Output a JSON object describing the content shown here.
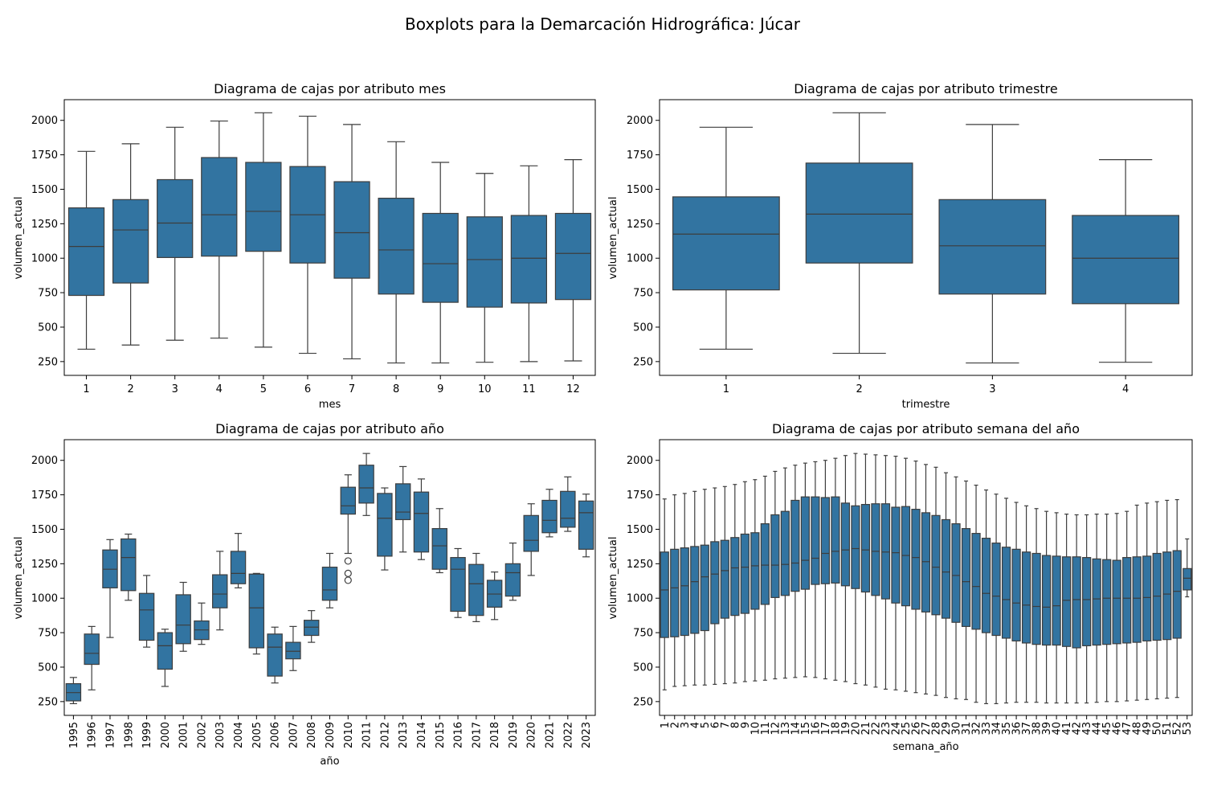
{
  "figure": {
    "suptitle": "Boxplots para la Demarcación Hidrográfica: Júcar",
    "box_color": "#3274a1",
    "line_color": "#3d3d3d"
  },
  "chart_data": [
    {
      "type": "boxplot",
      "title": "Diagrama de cajas por atributo mes",
      "xlabel": "mes",
      "ylabel": "volumen_actual",
      "ylim": [
        150,
        2150
      ],
      "yticks": [
        250,
        500,
        750,
        1000,
        1250,
        1500,
        1750,
        2000
      ],
      "grid": false,
      "categories": [
        "1",
        "2",
        "3",
        "4",
        "5",
        "6",
        "7",
        "8",
        "9",
        "10",
        "11",
        "12"
      ],
      "boxes": [
        {
          "min": 340,
          "q1": 730,
          "median": 1085,
          "q3": 1365,
          "max": 1775
        },
        {
          "min": 370,
          "q1": 820,
          "median": 1205,
          "q3": 1425,
          "max": 1830
        },
        {
          "min": 405,
          "q1": 1005,
          "median": 1255,
          "q3": 1570,
          "max": 1950
        },
        {
          "min": 420,
          "q1": 1015,
          "median": 1315,
          "q3": 1730,
          "max": 1995
        },
        {
          "min": 355,
          "q1": 1050,
          "median": 1340,
          "q3": 1695,
          "max": 2055
        },
        {
          "min": 310,
          "q1": 965,
          "median": 1315,
          "q3": 1665,
          "max": 2030
        },
        {
          "min": 270,
          "q1": 855,
          "median": 1185,
          "q3": 1555,
          "max": 1970
        },
        {
          "min": 240,
          "q1": 740,
          "median": 1060,
          "q3": 1435,
          "max": 1845
        },
        {
          "min": 240,
          "q1": 680,
          "median": 960,
          "q3": 1325,
          "max": 1695
        },
        {
          "min": 245,
          "q1": 645,
          "median": 990,
          "q3": 1300,
          "max": 1615
        },
        {
          "min": 250,
          "q1": 675,
          "median": 1000,
          "q3": 1310,
          "max": 1670
        },
        {
          "min": 255,
          "q1": 700,
          "median": 1035,
          "q3": 1325,
          "max": 1715
        }
      ]
    },
    {
      "type": "boxplot",
      "title": "Diagrama de cajas por atributo trimestre",
      "xlabel": "trimestre",
      "ylabel": "volumen_actual",
      "ylim": [
        150,
        2150
      ],
      "yticks": [
        250,
        500,
        750,
        1000,
        1250,
        1500,
        1750,
        2000
      ],
      "grid": false,
      "categories": [
        "1",
        "2",
        "3",
        "4"
      ],
      "boxes": [
        {
          "min": 340,
          "q1": 770,
          "median": 1175,
          "q3": 1445,
          "max": 1950
        },
        {
          "min": 310,
          "q1": 965,
          "median": 1320,
          "q3": 1690,
          "max": 2055
        },
        {
          "min": 240,
          "q1": 740,
          "median": 1090,
          "q3": 1425,
          "max": 1970
        },
        {
          "min": 245,
          "q1": 670,
          "median": 1000,
          "q3": 1310,
          "max": 1715
        }
      ]
    },
    {
      "type": "boxplot",
      "title": "Diagrama de cajas por atributo año",
      "xlabel": "año",
      "ylabel": "volumen_actual",
      "ylim": [
        150,
        2150
      ],
      "yticks": [
        250,
        500,
        750,
        1000,
        1250,
        1500,
        1750,
        2000
      ],
      "grid": false,
      "xtick_rotation": 90,
      "categories": [
        "1995",
        "1996",
        "1997",
        "1998",
        "1999",
        "2000",
        "2001",
        "2002",
        "2003",
        "2004",
        "2005",
        "2006",
        "2007",
        "2008",
        "2009",
        "2010",
        "2011",
        "2012",
        "2013",
        "2014",
        "2015",
        "2016",
        "2017",
        "2018",
        "2019",
        "2020",
        "2021",
        "2022",
        "2023"
      ],
      "boxes": [
        {
          "min": 235,
          "q1": 255,
          "median": 315,
          "q3": 380,
          "max": 425
        },
        {
          "min": 335,
          "q1": 520,
          "median": 600,
          "q3": 740,
          "max": 795
        },
        {
          "min": 715,
          "q1": 1075,
          "median": 1210,
          "q3": 1350,
          "max": 1425
        },
        {
          "min": 985,
          "q1": 1055,
          "median": 1295,
          "q3": 1430,
          "max": 1465
        },
        {
          "min": 645,
          "q1": 695,
          "median": 915,
          "q3": 1035,
          "max": 1165
        },
        {
          "min": 360,
          "q1": 485,
          "median": 655,
          "q3": 750,
          "max": 775
        },
        {
          "min": 615,
          "q1": 670,
          "median": 805,
          "q3": 1025,
          "max": 1115
        },
        {
          "min": 665,
          "q1": 700,
          "median": 770,
          "q3": 835,
          "max": 965
        },
        {
          "min": 770,
          "q1": 930,
          "median": 1030,
          "q3": 1170,
          "max": 1340
        },
        {
          "min": 1075,
          "q1": 1105,
          "median": 1180,
          "q3": 1340,
          "max": 1470
        },
        {
          "min": 595,
          "q1": 640,
          "median": 930,
          "q3": 1175,
          "max": 1180
        },
        {
          "min": 385,
          "q1": 435,
          "median": 645,
          "q3": 740,
          "max": 790
        },
        {
          "min": 475,
          "q1": 560,
          "median": 615,
          "q3": 680,
          "max": 795
        },
        {
          "min": 680,
          "q1": 730,
          "median": 790,
          "q3": 840,
          "max": 910
        },
        {
          "min": 930,
          "q1": 985,
          "median": 1060,
          "q3": 1225,
          "max": 1325
        },
        {
          "min": 1325,
          "q1": 1610,
          "median": 1670,
          "q3": 1805,
          "max": 1895,
          "outliers": [
            1130,
            1180,
            1270
          ]
        },
        {
          "min": 1600,
          "q1": 1690,
          "median": 1800,
          "q3": 1965,
          "max": 2050
        },
        {
          "min": 1205,
          "q1": 1305,
          "median": 1580,
          "q3": 1760,
          "max": 1800
        },
        {
          "min": 1335,
          "q1": 1570,
          "median": 1625,
          "q3": 1830,
          "max": 1955
        },
        {
          "min": 1280,
          "q1": 1335,
          "median": 1615,
          "q3": 1770,
          "max": 1865
        },
        {
          "min": 1185,
          "q1": 1210,
          "median": 1380,
          "q3": 1505,
          "max": 1650
        },
        {
          "min": 860,
          "q1": 905,
          "median": 1210,
          "q3": 1295,
          "max": 1360
        },
        {
          "min": 830,
          "q1": 875,
          "median": 1105,
          "q3": 1245,
          "max": 1325
        },
        {
          "min": 845,
          "q1": 935,
          "median": 1030,
          "q3": 1130,
          "max": 1190
        },
        {
          "min": 985,
          "q1": 1015,
          "median": 1185,
          "q3": 1250,
          "max": 1400
        },
        {
          "min": 1165,
          "q1": 1340,
          "median": 1420,
          "q3": 1600,
          "max": 1685
        },
        {
          "min": 1445,
          "q1": 1475,
          "median": 1565,
          "q3": 1710,
          "max": 1790
        },
        {
          "min": 1485,
          "q1": 1515,
          "median": 1580,
          "q3": 1775,
          "max": 1880
        },
        {
          "min": 1300,
          "q1": 1355,
          "median": 1620,
          "q3": 1705,
          "max": 1755
        }
      ]
    },
    {
      "type": "boxplot",
      "title": "Diagrama de cajas por atributo semana del año",
      "xlabel": "semana_año",
      "ylabel": "volumen_actual",
      "ylim": [
        150,
        2150
      ],
      "yticks": [
        250,
        500,
        750,
        1000,
        1250,
        1500,
        1750,
        2000
      ],
      "grid": false,
      "xtick_rotation": 90,
      "categories": [
        "1",
        "2",
        "3",
        "4",
        "5",
        "6",
        "7",
        "8",
        "9",
        "10",
        "11",
        "12",
        "13",
        "14",
        "15",
        "16",
        "17",
        "18",
        "19",
        "20",
        "21",
        "22",
        "23",
        "24",
        "25",
        "26",
        "27",
        "28",
        "29",
        "30",
        "31",
        "32",
        "33",
        "34",
        "35",
        "36",
        "37",
        "38",
        "39",
        "40",
        "41",
        "42",
        "43",
        "44",
        "45",
        "46",
        "47",
        "48",
        "49",
        "50",
        "51",
        "52",
        "53"
      ],
      "boxes": [
        {
          "min": 335,
          "q1": 715,
          "median": 1060,
          "q3": 1335,
          "max": 1720
        },
        {
          "min": 360,
          "q1": 720,
          "median": 1075,
          "q3": 1355,
          "max": 1750
        },
        {
          "min": 365,
          "q1": 730,
          "median": 1090,
          "q3": 1365,
          "max": 1760
        },
        {
          "min": 370,
          "q1": 745,
          "median": 1120,
          "q3": 1375,
          "max": 1775
        },
        {
          "min": 370,
          "q1": 765,
          "median": 1155,
          "q3": 1385,
          "max": 1790
        },
        {
          "min": 375,
          "q1": 815,
          "median": 1175,
          "q3": 1410,
          "max": 1800
        },
        {
          "min": 380,
          "q1": 855,
          "median": 1200,
          "q3": 1420,
          "max": 1810
        },
        {
          "min": 385,
          "q1": 875,
          "median": 1220,
          "q3": 1440,
          "max": 1825
        },
        {
          "min": 395,
          "q1": 890,
          "median": 1225,
          "q3": 1465,
          "max": 1845
        },
        {
          "min": 400,
          "q1": 920,
          "median": 1235,
          "q3": 1475,
          "max": 1860
        },
        {
          "min": 405,
          "q1": 955,
          "median": 1240,
          "q3": 1540,
          "max": 1885
        },
        {
          "min": 415,
          "q1": 1005,
          "median": 1240,
          "q3": 1605,
          "max": 1920
        },
        {
          "min": 420,
          "q1": 1020,
          "median": 1245,
          "q3": 1630,
          "max": 1945
        },
        {
          "min": 425,
          "q1": 1050,
          "median": 1255,
          "q3": 1710,
          "max": 1965
        },
        {
          "min": 430,
          "q1": 1065,
          "median": 1275,
          "q3": 1735,
          "max": 1980
        },
        {
          "min": 425,
          "q1": 1100,
          "median": 1290,
          "q3": 1735,
          "max": 1990
        },
        {
          "min": 415,
          "q1": 1105,
          "median": 1325,
          "q3": 1730,
          "max": 2000
        },
        {
          "min": 405,
          "q1": 1110,
          "median": 1340,
          "q3": 1735,
          "max": 2015
        },
        {
          "min": 395,
          "q1": 1090,
          "median": 1350,
          "q3": 1690,
          "max": 2035
        },
        {
          "min": 380,
          "q1": 1070,
          "median": 1360,
          "q3": 1670,
          "max": 2050
        },
        {
          "min": 370,
          "q1": 1045,
          "median": 1350,
          "q3": 1680,
          "max": 2045
        },
        {
          "min": 355,
          "q1": 1020,
          "median": 1340,
          "q3": 1685,
          "max": 2040
        },
        {
          "min": 340,
          "q1": 995,
          "median": 1335,
          "q3": 1685,
          "max": 2035
        },
        {
          "min": 335,
          "q1": 965,
          "median": 1330,
          "q3": 1660,
          "max": 2030
        },
        {
          "min": 325,
          "q1": 945,
          "median": 1310,
          "q3": 1665,
          "max": 2015
        },
        {
          "min": 315,
          "q1": 920,
          "median": 1295,
          "q3": 1645,
          "max": 1995
        },
        {
          "min": 305,
          "q1": 900,
          "median": 1265,
          "q3": 1620,
          "max": 1970
        },
        {
          "min": 295,
          "q1": 880,
          "median": 1225,
          "q3": 1600,
          "max": 1950
        },
        {
          "min": 280,
          "q1": 855,
          "median": 1190,
          "q3": 1570,
          "max": 1910
        },
        {
          "min": 270,
          "q1": 825,
          "median": 1165,
          "q3": 1540,
          "max": 1880
        },
        {
          "min": 265,
          "q1": 795,
          "median": 1120,
          "q3": 1505,
          "max": 1850
        },
        {
          "min": 245,
          "q1": 775,
          "median": 1085,
          "q3": 1470,
          "max": 1820
        },
        {
          "min": 235,
          "q1": 750,
          "median": 1035,
          "q3": 1435,
          "max": 1785
        },
        {
          "min": 235,
          "q1": 730,
          "median": 1015,
          "q3": 1400,
          "max": 1755
        },
        {
          "min": 240,
          "q1": 710,
          "median": 990,
          "q3": 1370,
          "max": 1725
        },
        {
          "min": 245,
          "q1": 690,
          "median": 965,
          "q3": 1355,
          "max": 1695
        },
        {
          "min": 245,
          "q1": 675,
          "median": 950,
          "q3": 1335,
          "max": 1670
        },
        {
          "min": 245,
          "q1": 665,
          "median": 940,
          "q3": 1325,
          "max": 1650
        },
        {
          "min": 240,
          "q1": 660,
          "median": 935,
          "q3": 1310,
          "max": 1630
        },
        {
          "min": 240,
          "q1": 660,
          "median": 945,
          "q3": 1305,
          "max": 1620
        },
        {
          "min": 240,
          "q1": 650,
          "median": 985,
          "q3": 1300,
          "max": 1610
        },
        {
          "min": 240,
          "q1": 640,
          "median": 990,
          "q3": 1300,
          "max": 1605
        },
        {
          "min": 240,
          "q1": 655,
          "median": 990,
          "q3": 1295,
          "max": 1605
        },
        {
          "min": 245,
          "q1": 660,
          "median": 995,
          "q3": 1285,
          "max": 1610
        },
        {
          "min": 250,
          "q1": 665,
          "median": 1000,
          "q3": 1280,
          "max": 1610
        },
        {
          "min": 250,
          "q1": 670,
          "median": 1000,
          "q3": 1275,
          "max": 1615
        },
        {
          "min": 255,
          "q1": 675,
          "median": 1000,
          "q3": 1295,
          "max": 1630
        },
        {
          "min": 260,
          "q1": 680,
          "median": 1000,
          "q3": 1300,
          "max": 1675
        },
        {
          "min": 265,
          "q1": 690,
          "median": 1005,
          "q3": 1305,
          "max": 1690
        },
        {
          "min": 270,
          "q1": 695,
          "median": 1015,
          "q3": 1325,
          "max": 1700
        },
        {
          "min": 275,
          "q1": 700,
          "median": 1030,
          "q3": 1335,
          "max": 1710
        },
        {
          "min": 280,
          "q1": 710,
          "median": 1050,
          "q3": 1345,
          "max": 1715
        },
        {
          "min": 1010,
          "q1": 1060,
          "median": 1145,
          "q3": 1215,
          "max": 1430
        }
      ]
    }
  ]
}
